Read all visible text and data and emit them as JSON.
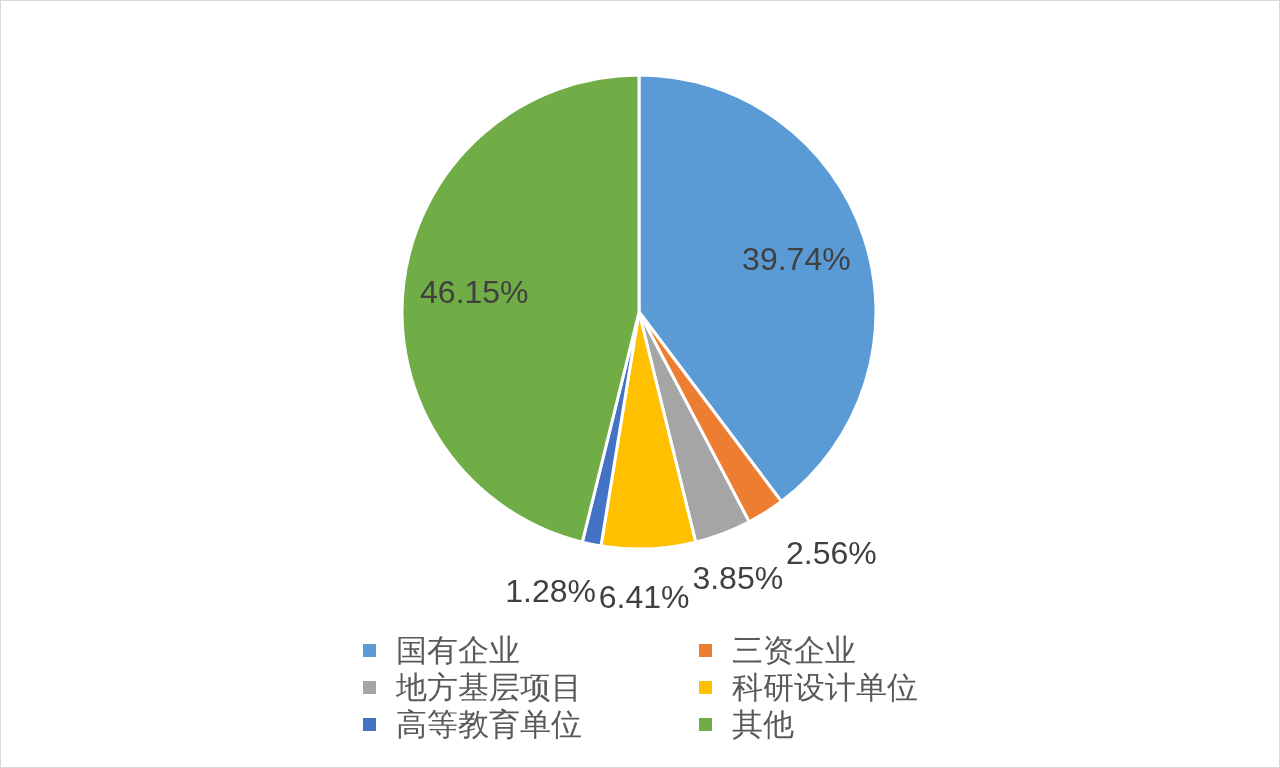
{
  "chart_data": {
    "type": "pie",
    "categories": [
      "国有企业",
      "三资企业",
      "地方基层项目",
      "科研设计单位",
      "高等教育单位",
      "其他"
    ],
    "values": [
      39.74,
      2.56,
      3.85,
      6.41,
      1.28,
      46.15
    ],
    "colors": [
      "#5b9bd5",
      "#ed7d31",
      "#a5a5a5",
      "#ffc000",
      "#4472c4",
      "#70ad47"
    ],
    "value_labels": [
      "39.74%",
      "2.56%",
      "3.85%",
      "6.41%",
      "1.28%",
      "46.15%"
    ],
    "legend": "bottom"
  }
}
